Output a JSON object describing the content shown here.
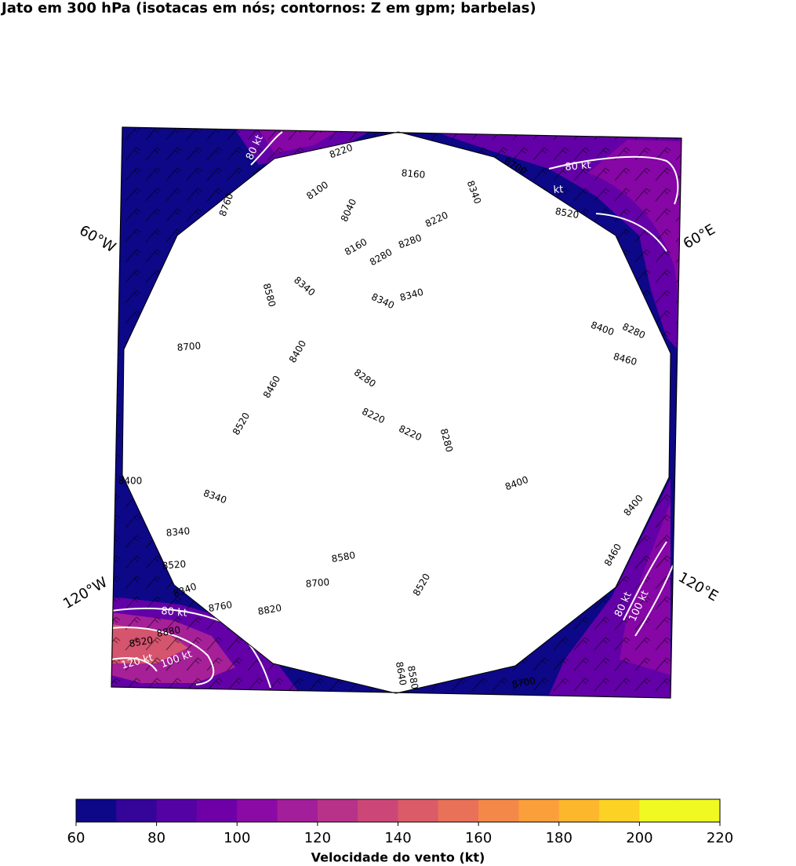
{
  "title": "Jato em 300 hPa (isotacas em nós; contornos: Z em gpm; barbelas)",
  "map": {
    "projection": "polar-stereographic",
    "longitude_labels": [
      "60°W",
      "60°E",
      "120°W",
      "120°E"
    ],
    "fill_colors": {
      "background": "#0d0887",
      "band_70_80": "#3e049c",
      "band_80_90": "#6300a7",
      "band_90_100": "#8606a6",
      "band_100_110": "#a62098",
      "band_120_130": "#c03a83",
      "band_130_140": "#d5546e",
      "contour_line": "#ffffff",
      "border": "#000000"
    },
    "height_contour_labels": [
      "8220",
      "8160",
      "8340",
      "8700",
      "8100",
      "8760",
      "8040",
      "8220",
      "8520",
      "8160",
      "8280",
      "8280",
      "8580",
      "8340",
      "8340",
      "8340",
      "8700",
      "8400",
      "8460",
      "8400",
      "8280",
      "8280",
      "8460",
      "8520",
      "8220",
      "8220",
      "8280",
      "8400",
      "8340",
      "8400",
      "8400",
      "8340",
      "8460",
      "8520",
      "8580",
      "8700",
      "8520",
      "8340",
      "8760",
      "8820",
      "8880",
      "8640",
      "8580",
      "8520",
      "8700"
    ],
    "isotach_labels": [
      "80 kt",
      "80 kt",
      "kt",
      "80 kt",
      "120 kt",
      "100 kt",
      "80 kt",
      "100 kt"
    ]
  },
  "colorbar": {
    "label": "Velocidade do vento (kt)",
    "ticks": [
      "60",
      "80",
      "100",
      "120",
      "140",
      "160",
      "180",
      "200",
      "220"
    ],
    "colors": [
      "#0d0887",
      "#350498",
      "#5402a3",
      "#6f00a8",
      "#8b0aa5",
      "#a31e9a",
      "#b83289",
      "#cc4778",
      "#db5c68",
      "#e97158",
      "#f48849",
      "#fb9f3a",
      "#fdb72d",
      "#fcd225",
      "#f0f921",
      "#f0f921"
    ]
  }
}
